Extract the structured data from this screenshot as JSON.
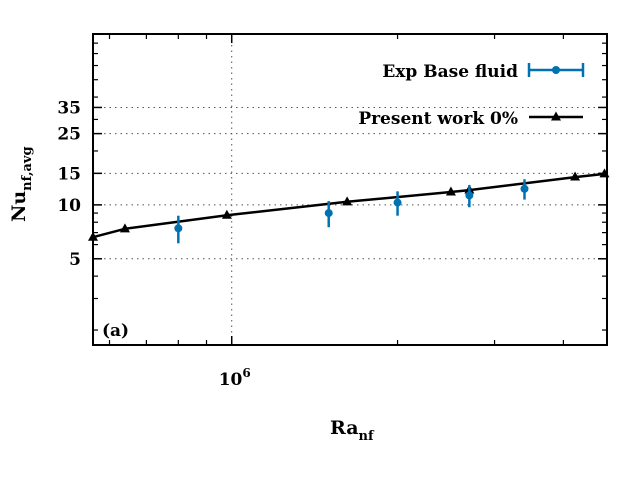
{
  "chart_data": {
    "type": "line",
    "x_scale": "log",
    "y_scale": "log",
    "xlim": [
      560000,
      4800000
    ],
    "ylim": [
      1.65,
      90
    ],
    "panel_label": "(a)",
    "xlabel": {
      "main": "Ra",
      "sub": "nf"
    },
    "ylabel": {
      "main": "Nu",
      "sub": "nf,avg"
    },
    "x_ticks": [
      {
        "value": 1000000,
        "base": "10",
        "exp": "6"
      }
    ],
    "y_ticks": [
      "5",
      "10",
      "15",
      "25",
      "35"
    ],
    "grid": true,
    "legend_position": "top-right",
    "series": [
      {
        "name": "Exp Base fluid",
        "style": "points-errorbars",
        "marker": "circle",
        "color": "#0072b2",
        "x": [
          800000,
          1500000,
          2000000,
          2700000,
          3400000
        ],
        "y": [
          7.4,
          9.0,
          10.3,
          11.3,
          12.3
        ],
        "err": [
          1.3,
          1.5,
          1.6,
          1.6,
          1.6
        ]
      },
      {
        "name": "Present work 0%",
        "style": "line-points",
        "marker": "triangle",
        "color": "#000000",
        "x": [
          560000,
          640000,
          980000,
          1620000,
          2500000,
          2700000,
          4200000,
          4750000
        ],
        "y": [
          6.6,
          7.35,
          8.75,
          10.4,
          11.8,
          12.1,
          14.3,
          14.9
        ]
      }
    ]
  }
}
